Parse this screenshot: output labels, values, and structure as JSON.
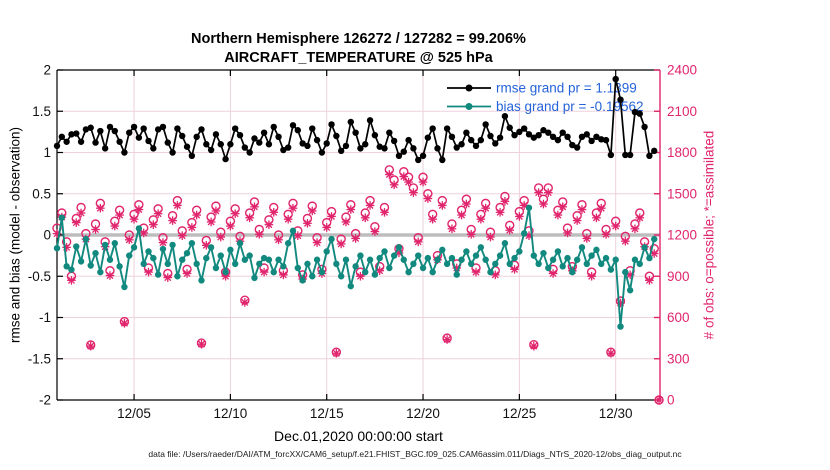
{
  "figure": {
    "title_line1": "Northern Hemisphere 126272 / 127282 = 99.206%",
    "title_line2": "AIRCRAFT_TEMPERATURE @ 525 hPa",
    "caption": "data file: /Users/raeder/DAI/ATM_forcXX/CAM6_setup/f.e21.FHIST_BGC.f09_025.CAM6assim.011/Diags_NTrS_2020-12/obs_diag_output.nc"
  },
  "colors": {
    "rmse": "#000000",
    "bias": "#12897f",
    "obs": "#e0256d",
    "legend_text": "#2563d9",
    "grid": "#eed2db",
    "zero_line": "#bdbdbd",
    "axis_left": "#000000",
    "axis_right": "#e0256d"
  },
  "chart_data": {
    "type": "line",
    "title": "Northern Hemisphere 126272 / 127282 = 99.206% | AIRCRAFT_TEMPERATURE @ 525 hPa",
    "xlabel": "Dec.01,2020 00:00:00 start",
    "ylabel_left": "rmse and bias (model - observation)",
    "ylabel_right": "# of obs: o=possible; *=assimilated",
    "xlim": [
      1,
      32.3
    ],
    "ylim_left": [
      -2,
      2
    ],
    "ylim_right": [
      0,
      2400
    ],
    "x_ticks": [
      5,
      10,
      15,
      20,
      25,
      30
    ],
    "x_tick_labels": [
      "12/05",
      "12/10",
      "12/15",
      "12/20",
      "12/25",
      "12/30"
    ],
    "y_ticks_left": [
      2,
      1.5,
      1,
      0.5,
      0,
      -0.5,
      -1,
      -1.5,
      -2
    ],
    "y_tick_labels_left": [
      "2",
      "1.5",
      "1",
      "0.5",
      "0",
      "-0.5",
      "-1",
      "-1.5",
      "-2"
    ],
    "y_ticks_right": [
      2400,
      2100,
      1800,
      1500,
      1200,
      900,
      600,
      300,
      0
    ],
    "y_tick_labels_right": [
      "2400",
      "2100",
      "1800",
      "1500",
      "1200",
      "900",
      "600",
      "300",
      "0"
    ],
    "y_gridlines_left": [
      1.5,
      1,
      0.5,
      -0.5,
      -1,
      -1.5
    ],
    "grid": true,
    "zero_reference_line": 0,
    "x_start": 1,
    "x_step": 0.25,
    "legend": {
      "position": "upper-right",
      "entries": [
        {
          "label": "rmse grand pr = 1.1399",
          "color": "#000000"
        },
        {
          "label": "bias grand pr = -0.19562",
          "color": "#12897f"
        }
      ]
    },
    "series": [
      {
        "name": "rmse",
        "axis": "left",
        "marker": "filled-circle",
        "color": "#000000",
        "values": [
          1.08,
          1.19,
          1.13,
          1.22,
          1.23,
          1.13,
          1.28,
          1.3,
          1.12,
          1.26,
          1.05,
          1.31,
          1.26,
          1.13,
          1.0,
          1.24,
          1.31,
          1.18,
          1.29,
          1.14,
          1.05,
          1.28,
          1.31,
          1.12,
          1.0,
          1.29,
          1.2,
          1.07,
          0.96,
          1.19,
          1.28,
          1.1,
          1.03,
          1.22,
          1.1,
          0.92,
          1.1,
          1.29,
          1.21,
          1.06,
          1.0,
          1.17,
          1.12,
          1.24,
          1.1,
          1.31,
          1.19,
          1.03,
          1.06,
          1.33,
          1.27,
          1.11,
          1.08,
          1.29,
          1.15,
          1.0,
          1.11,
          1.34,
          1.2,
          1.02,
          1.08,
          1.37,
          1.24,
          1.05,
          1.1,
          1.39,
          1.21,
          1.07,
          1.05,
          1.24,
          1.14,
          0.96,
          1.01,
          1.15,
          1.05,
          0.91,
          0.96,
          1.18,
          1.29,
          1.05,
          0.91,
          1.29,
          1.19,
          1.06,
          1.1,
          1.24,
          1.15,
          1.08,
          1.15,
          1.34,
          1.2,
          1.11,
          1.18,
          1.44,
          1.3,
          1.21,
          1.25,
          1.29,
          1.22,
          1.18,
          1.21,
          1.27,
          1.24,
          1.19,
          1.15,
          1.24,
          1.19,
          1.09,
          1.06,
          1.19,
          1.22,
          1.14,
          1.19,
          1.16,
          1.15,
          0.97,
          1.89,
          1.64,
          0.97,
          0.97,
          1.49,
          1.47,
          1.31,
          0.96,
          1.02,
          null
        ]
      },
      {
        "name": "bias",
        "axis": "left",
        "marker": "filled-circle",
        "color": "#12897f",
        "values": [
          -0.16,
          0.21,
          -0.38,
          -0.42,
          -0.14,
          -0.32,
          -0.05,
          -0.37,
          -0.22,
          -0.45,
          -0.12,
          -0.3,
          -0.1,
          -0.38,
          -0.63,
          -0.25,
          -0.15,
          0.08,
          -0.35,
          -0.2,
          -0.28,
          -0.48,
          -0.17,
          -0.35,
          -0.12,
          -0.5,
          -0.3,
          -0.22,
          -0.1,
          -0.35,
          -0.55,
          -0.28,
          -0.15,
          -0.4,
          -0.25,
          -0.45,
          -0.18,
          -0.35,
          -0.1,
          -0.3,
          -0.25,
          -0.52,
          -0.35,
          -0.28,
          -0.3,
          -0.45,
          -0.3,
          -0.38,
          -0.1,
          0.05,
          -0.4,
          -0.55,
          -0.35,
          -0.5,
          -0.3,
          -0.45,
          -0.2,
          -0.05,
          -0.35,
          -0.5,
          -0.3,
          -0.62,
          -0.38,
          -0.25,
          -0.45,
          -0.3,
          -0.48,
          -0.28,
          -0.2,
          -0.4,
          -0.25,
          -0.15,
          -0.3,
          -0.45,
          -0.35,
          -0.25,
          -0.4,
          -0.28,
          -0.45,
          -0.3,
          -0.18,
          -0.35,
          -0.28,
          -0.48,
          -0.3,
          -0.2,
          -0.35,
          -0.25,
          -0.15,
          -0.3,
          -0.45,
          -0.35,
          -0.25,
          -0.1,
          -0.35,
          -0.28,
          -0.2,
          0.02,
          0.33,
          -0.25,
          -0.35,
          -0.22,
          -0.4,
          -0.3,
          -0.2,
          -0.38,
          -0.28,
          -0.45,
          -0.3,
          -0.15,
          -0.35,
          -0.25,
          -0.18,
          -0.35,
          -0.28,
          -0.42,
          -0.3,
          -1.11,
          -0.45,
          -0.67,
          -0.3,
          -0.35,
          -0.15,
          -0.28,
          -0.05,
          null
        ]
      },
      {
        "name": "possible",
        "axis": "right",
        "marker": "o",
        "color": "#e0256d",
        "values": [
          1250,
          1360,
          1150,
          900,
          1320,
          1400,
          1210,
          400,
          1280,
          1430,
          1150,
          940,
          1300,
          1380,
          570,
          1200,
          1350,
          1420,
          1250,
          960,
          1310,
          1390,
          1180,
          920,
          1340,
          1450,
          1230,
          950,
          1290,
          1380,
          414,
          1160,
          1330,
          1410,
          1220,
          930,
          1300,
          1390,
          1190,
          726,
          1360,
          1440,
          1240,
          960,
          1310,
          1400,
          1200,
          940,
          1350,
          1430,
          1230,
          910,
          1320,
          1410,
          1180,
          950,
          1290,
          1370,
          348,
          1170,
          1330,
          1420,
          1210,
          930,
          1360,
          1450,
          1260,
          970,
          1400,
          1674,
          1600,
          1100,
          1660,
          1620,
          1542,
          1180,
          1620,
          1500,
          1350,
          1050,
          1450,
          450,
          1280,
          990,
          1380,
          1460,
          1240,
          960,
          1350,
          1430,
          1220,
          940,
          1400,
          1480,
          1270,
          980,
          1370,
          1450,
          1230,
          402,
          1542,
          1460,
          1542,
          950,
          1380,
          1440,
          1250,
          970,
          1340,
          1420,
          1210,
          930,
          1360,
          1430,
          1240,
          348,
          1300,
          720,
          1190,
          940,
          1280,
          1360,
          1150,
          900,
          1100,
          0
        ]
      },
      {
        "name": "assimilated",
        "axis": "right",
        "marker": "*",
        "color": "#e0256d",
        "values": [
          1210,
          1330,
          1110,
          870,
          1290,
          1360,
          1170,
          392,
          1240,
          1395,
          1115,
          905,
          1265,
          1345,
          558,
          1165,
          1315,
          1385,
          1215,
          930,
          1275,
          1355,
          1145,
          890,
          1305,
          1415,
          1195,
          920,
          1255,
          1345,
          406,
          1125,
          1295,
          1375,
          1185,
          900,
          1265,
          1355,
          1155,
          710,
          1325,
          1405,
          1205,
          930,
          1275,
          1365,
          1165,
          910,
          1315,
          1395,
          1195,
          880,
          1285,
          1375,
          1145,
          920,
          1255,
          1335,
          340,
          1135,
          1295,
          1385,
          1175,
          900,
          1325,
          1415,
          1225,
          940,
          1365,
          1640,
          1565,
          1070,
          1625,
          1585,
          1508,
          1150,
          1585,
          1465,
          1315,
          1020,
          1415,
          440,
          1245,
          960,
          1345,
          1425,
          1205,
          930,
          1315,
          1395,
          1185,
          910,
          1365,
          1445,
          1235,
          950,
          1335,
          1415,
          1195,
          392,
          1508,
          1425,
          1508,
          920,
          1345,
          1405,
          1215,
          940,
          1305,
          1385,
          1175,
          900,
          1325,
          1395,
          1205,
          340,
          1265,
          705,
          1155,
          910,
          1245,
          1325,
          1115,
          870,
          1065,
          0
        ]
      }
    ]
  }
}
